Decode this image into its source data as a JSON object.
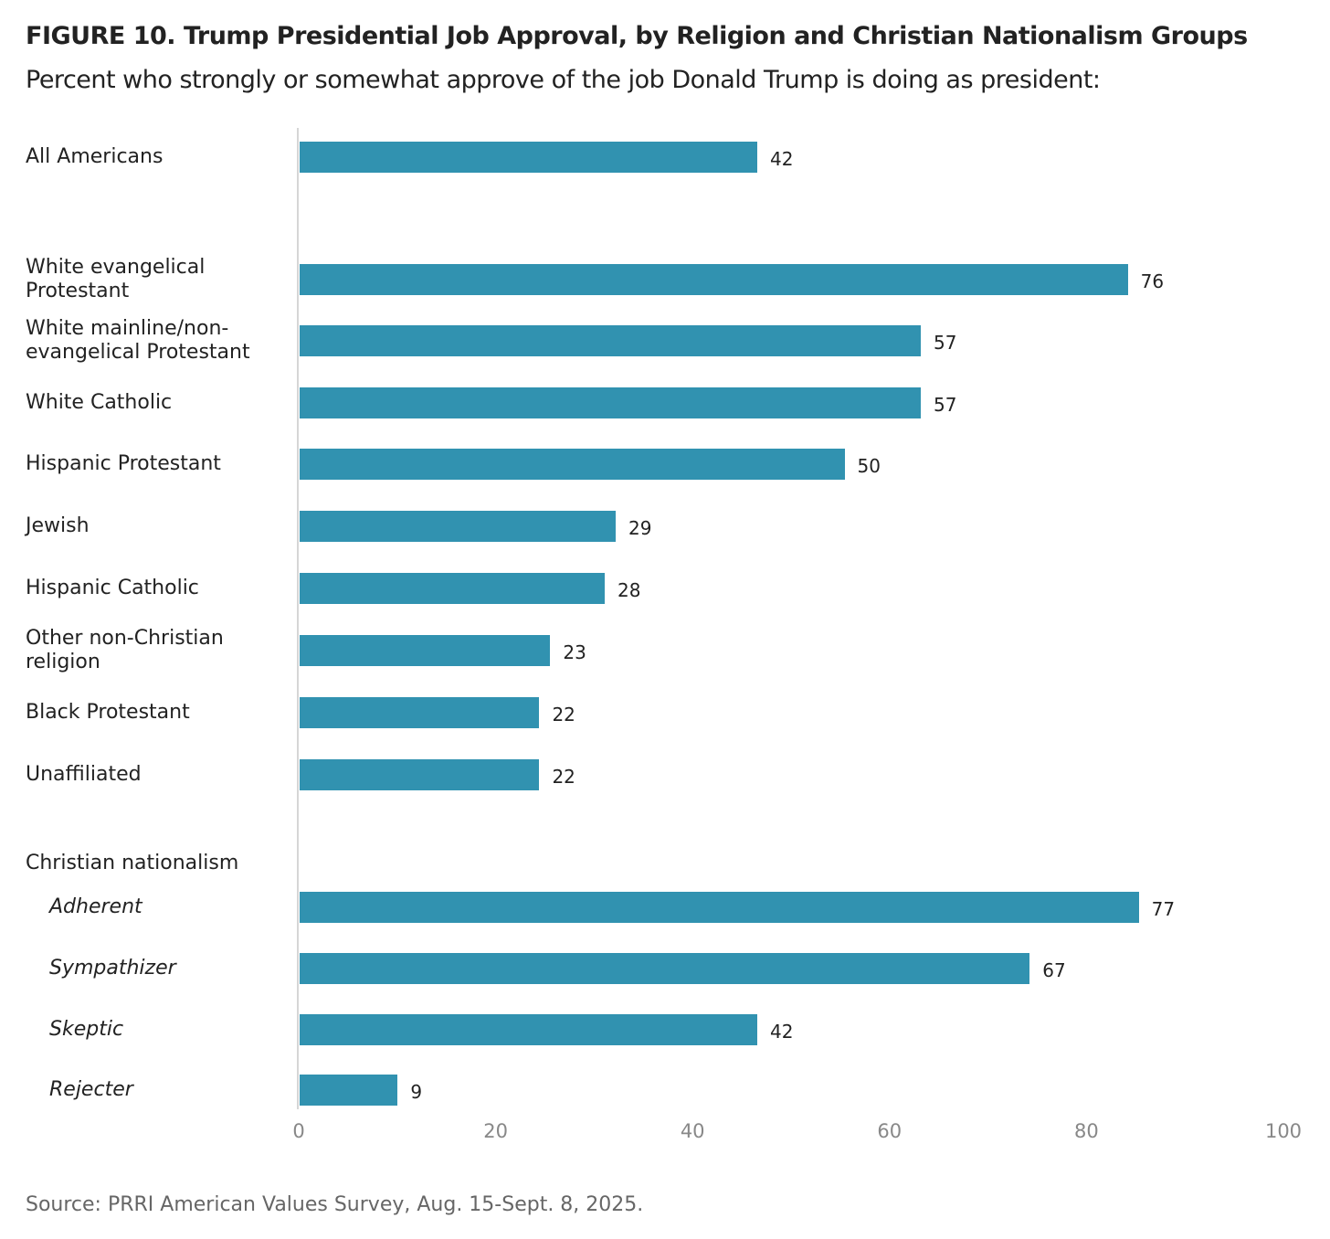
{
  "chart_data": {
    "type": "bar",
    "orientation": "horizontal",
    "title": "FIGURE 10.  Trump Presidential Job Approval, by Religion and Christian Nationalism Groups",
    "subtitle": "Percent who strongly or somewhat approve of the job Donald Trump is doing as president:",
    "group_label": "Christian nationalism",
    "categories": [
      "All Americans",
      "White evangelical Protestant",
      "White mainline/non-evangelical Protestant",
      "White Catholic",
      "Hispanic Protestant",
      "Jewish",
      "Hispanic Catholic",
      "Other non-Christian religion",
      "Black Protestant",
      "Unaffiliated",
      "Adherent",
      "Sympathizer",
      "Skeptic",
      "Rejecter"
    ],
    "values": [
      42,
      76,
      57,
      57,
      50,
      29,
      28,
      23,
      22,
      22,
      77,
      67,
      42,
      9
    ],
    "xlim": [
      0,
      100
    ],
    "xticks": [
      "0",
      "20",
      "40",
      "60",
      "80",
      "100"
    ],
    "xlabel": "",
    "ylabel": "",
    "grid": false,
    "bar_color": "#3192b0",
    "source": "Source: PRRI American Values Survey, Aug. 15-Sept. 8, 2025."
  }
}
